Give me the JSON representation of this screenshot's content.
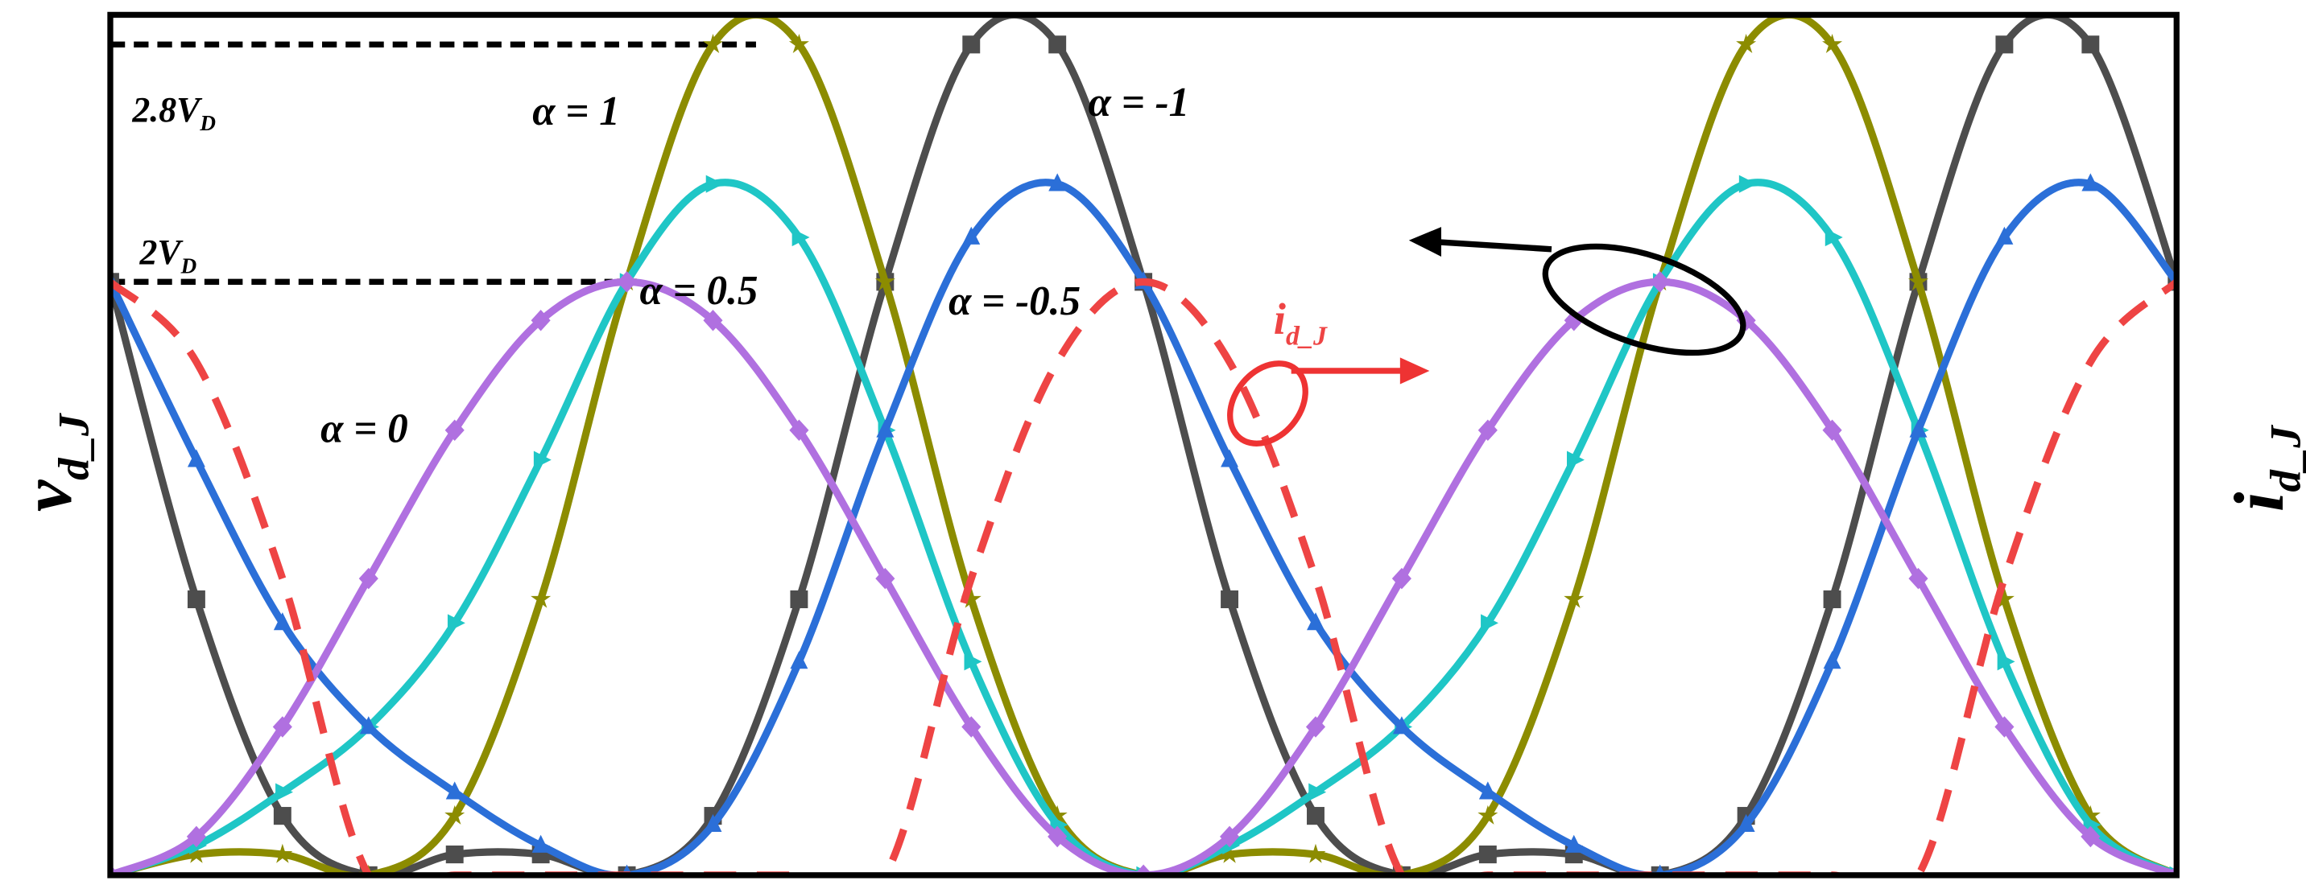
{
  "chart_data": {
    "type": "line",
    "y_label": {
      "text": "v",
      "subscript": "d_J"
    },
    "y2_label": {
      "text": "i",
      "subscript": "d_J"
    },
    "x": [
      0,
      30,
      60,
      90,
      120,
      150,
      180,
      210,
      240,
      270,
      300,
      330,
      360,
      390,
      420,
      450,
      480,
      510,
      540,
      570,
      600,
      630,
      660,
      690,
      720
    ],
    "xlim": [
      0,
      720
    ],
    "ylim": [
      0,
      2.9
    ],
    "y2lim": [
      0,
      2.9
    ],
    "reference_lines": [
      {
        "value": 2.8,
        "text": "2.8V",
        "subscript": "D",
        "x_range": [
          0,
          225
        ]
      },
      {
        "value": 2,
        "text": "2V",
        "subscript": "D",
        "x_range": [
          0,
          175
        ]
      }
    ],
    "series": [
      {
        "name": "α = -1",
        "color": "#4d4d4d",
        "marker": "square",
        "values": [
          2,
          0.93,
          0.2,
          0,
          0.07,
          0.07,
          0,
          0.2,
          0.93,
          2,
          2.8,
          2.8,
          2,
          0.93,
          0.2,
          0,
          0.07,
          0.07,
          0,
          0.2,
          0.93,
          2,
          2.8,
          2.8,
          2
        ]
      },
      {
        "name": "α = 1",
        "color": "#8c8c00",
        "marker": "star",
        "values": [
          0,
          0.07,
          0.07,
          0,
          0.2,
          0.93,
          2,
          2.8,
          2.8,
          2,
          0.93,
          0.2,
          0,
          0.07,
          0.07,
          0,
          0.2,
          0.93,
          2,
          2.8,
          2.8,
          2,
          0.93,
          0.2,
          0
        ]
      },
      {
        "name": "α = 0.5",
        "color": "#1fc6c6",
        "marker": "triangle-right",
        "values": [
          0,
          0.1,
          0.28,
          0.5,
          0.85,
          1.4,
          2,
          2.33,
          2.15,
          1.5,
          0.72,
          0.17,
          0,
          0.1,
          0.28,
          0.5,
          0.85,
          1.4,
          2,
          2.33,
          2.15,
          1.5,
          0.72,
          0.17,
          0
        ]
      },
      {
        "name": "α = -0.5",
        "color": "#2b6fd8",
        "marker": "triangle-up",
        "values": [
          2,
          1.4,
          0.85,
          0.5,
          0.28,
          0.1,
          0,
          0.17,
          0.72,
          1.5,
          2.15,
          2.33,
          2,
          1.4,
          0.85,
          0.5,
          0.28,
          0.1,
          0,
          0.17,
          0.72,
          1.5,
          2.15,
          2.33,
          2
        ]
      },
      {
        "name": "α = 0",
        "color": "#b070e0",
        "marker": "diamond",
        "values": [
          0,
          0.13,
          0.5,
          1,
          1.5,
          1.87,
          2,
          1.87,
          1.5,
          1,
          0.5,
          0.13,
          0,
          0.13,
          0.5,
          1,
          1.5,
          1.87,
          2,
          1.87,
          1.5,
          1,
          0.5,
          0.13,
          0
        ]
      },
      {
        "name": "i",
        "subscript": "d_J",
        "color": "#ee4444",
        "marker": "none",
        "dashed": true,
        "axis": "y2",
        "values": [
          2,
          1.73,
          1,
          0,
          0,
          0,
          0,
          0,
          0,
          0,
          1,
          1.73,
          2,
          1.73,
          1,
          0,
          0,
          0,
          0,
          0,
          0,
          0,
          1,
          1.73,
          2
        ]
      }
    ]
  }
}
